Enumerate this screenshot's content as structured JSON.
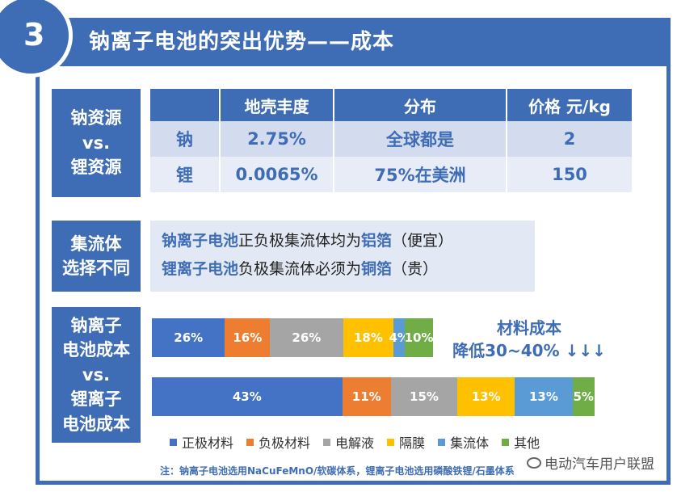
{
  "header": {
    "number": "3",
    "title": "钠离子电池的突出优势——成本"
  },
  "resources": {
    "label_lines": [
      "钠资源",
      "vs.",
      "锂资源"
    ],
    "headers": [
      "",
      "地壳丰度",
      "分布",
      "价格 元/kg"
    ],
    "rows": [
      [
        "钠",
        "2.75%",
        "全球都是",
        "2"
      ],
      [
        "锂",
        "0.0065%",
        "75%在美洲",
        "150"
      ]
    ]
  },
  "collector": {
    "label_lines": [
      "集流体",
      "选择不同"
    ],
    "line1": {
      "a": "钠离子电池",
      "b": "正负极集流体均为",
      "c": "铝箔",
      "d": "（便宜）"
    },
    "line2": {
      "a": "锂离子电池",
      "b": "负极集流体必须为",
      "c": "铜箔",
      "d": "（贵）"
    }
  },
  "cost": {
    "label_lines": [
      "钠离子",
      "电池成本",
      "vs.",
      "锂离子",
      "电池成本"
    ],
    "note_line1": "材料成本",
    "note_line2": "降低30~40% ↓↓↓"
  },
  "chart_data": {
    "type": "bar",
    "orientation": "horizontal-stacked-100",
    "categories": [
      "钠离子电池成本",
      "锂离子电池成本"
    ],
    "series": [
      {
        "name": "正极材料",
        "color": "#4472c4",
        "values": [
          26,
          43
        ]
      },
      {
        "name": "负极材料",
        "color": "#ed7d31",
        "values": [
          16,
          11
        ]
      },
      {
        "name": "电解液",
        "color": "#a5a5a5",
        "values": [
          26,
          15
        ]
      },
      {
        "name": "隔膜",
        "color": "#ffc000",
        "values": [
          18,
          13
        ]
      },
      {
        "name": "集流体",
        "color": "#5b9bd5",
        "values": [
          4,
          13
        ]
      },
      {
        "name": "其他",
        "color": "#70ad47",
        "values": [
          10,
          5
        ]
      }
    ],
    "data_labels": [
      [
        "26%",
        "16%",
        "26%",
        "18%",
        "4%",
        "10%"
      ],
      [
        "43%",
        "11%",
        "15%",
        "13%",
        "13%",
        "5%"
      ]
    ],
    "legend_position": "bottom"
  },
  "footnote": "注：钠离子电池选用NaCuFeMnO/软碳体系，锂离子电池选用磷酸铁锂/石墨体系",
  "watermark": "电动汽车用户联盟"
}
